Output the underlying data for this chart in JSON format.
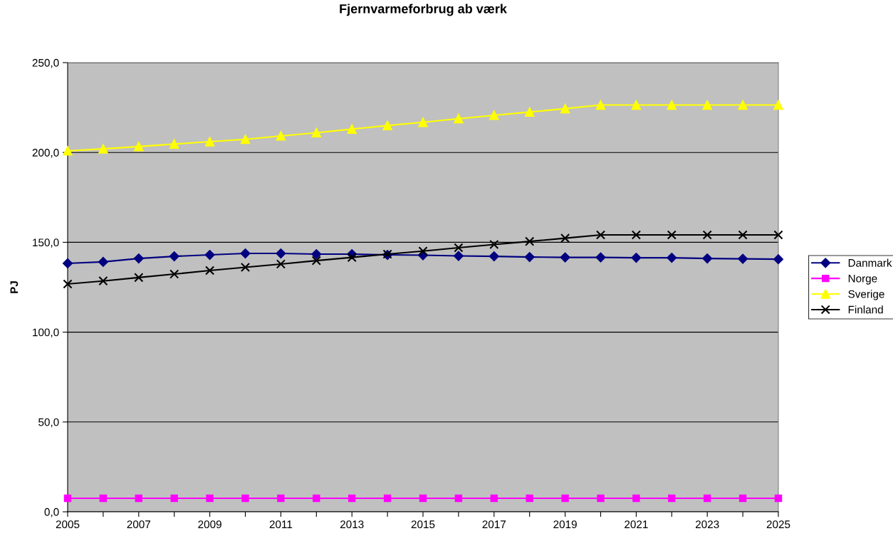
{
  "chart_data": {
    "type": "line",
    "title": "Fjernvarmeforbrug ab værk",
    "ylabel": "PJ",
    "x": [
      2005,
      2006,
      2007,
      2008,
      2009,
      2010,
      2011,
      2012,
      2013,
      2014,
      2015,
      2016,
      2017,
      2018,
      2019,
      2020,
      2021,
      2022,
      2023,
      2024,
      2025
    ],
    "series": [
      {
        "name": "Danmark",
        "color": "#000080",
        "marker": "diamond",
        "values": [
          138.3,
          139.1,
          141.0,
          142.2,
          143.0,
          143.8,
          143.8,
          143.4,
          143.4,
          143.0,
          142.8,
          142.4,
          142.2,
          141.8,
          141.6,
          141.6,
          141.4,
          141.4,
          141.0,
          140.8,
          140.6
        ]
      },
      {
        "name": "Norge",
        "color": "#ff00ff",
        "marker": "square",
        "values": [
          7.5,
          7.5,
          7.5,
          7.5,
          7.5,
          7.5,
          7.5,
          7.5,
          7.5,
          7.5,
          7.5,
          7.5,
          7.5,
          7.5,
          7.5,
          7.5,
          7.5,
          7.5,
          7.5,
          7.5,
          7.5
        ]
      },
      {
        "name": "Sverige",
        "color": "#ffff00",
        "marker": "triangle",
        "values": [
          200.9,
          202.0,
          203.3,
          204.7,
          206.0,
          207.3,
          209.2,
          211.0,
          213.0,
          215.0,
          216.8,
          218.8,
          220.7,
          222.5,
          224.4,
          226.4,
          226.4,
          226.4,
          226.4,
          226.4,
          226.4
        ]
      },
      {
        "name": "Finland",
        "color": "#000000",
        "marker": "cross",
        "values": [
          126.8,
          128.5,
          130.4,
          132.3,
          134.3,
          136.1,
          137.9,
          139.8,
          141.6,
          143.4,
          145.1,
          147.0,
          148.8,
          150.5,
          152.3,
          154.1,
          154.1,
          154.1,
          154.1,
          154.1,
          154.1
        ]
      }
    ],
    "xlim": [
      2005,
      2025
    ],
    "xticks": [
      2005,
      {
        "value": 2006,
        "label": null
      },
      2007,
      {
        "value": 2008,
        "label": null
      },
      2009,
      {
        "value": 2010,
        "label": null
      },
      2011,
      {
        "value": 2012,
        "label": null
      },
      2013,
      {
        "value": 2014,
        "label": null
      },
      2015,
      {
        "value": 2016,
        "label": null
      },
      2017,
      {
        "value": 2018,
        "label": null
      },
      2019,
      {
        "value": 2020,
        "label": null
      },
      2021,
      {
        "value": 2022,
        "label": null
      },
      2023,
      {
        "value": 2024,
        "label": null
      },
      2025
    ],
    "ylim": [
      0,
      250
    ],
    "yticks": [
      {
        "value": 0,
        "label": "0,0"
      },
      {
        "value": 50,
        "label": "50,0"
      },
      {
        "value": 100,
        "label": "100,0"
      },
      {
        "value": 150,
        "label": "150,0"
      },
      {
        "value": 200,
        "label": "200,0"
      },
      {
        "value": 250,
        "label": "250,0"
      }
    ],
    "grid": "y",
    "legend": "right",
    "line_style": "solid"
  }
}
